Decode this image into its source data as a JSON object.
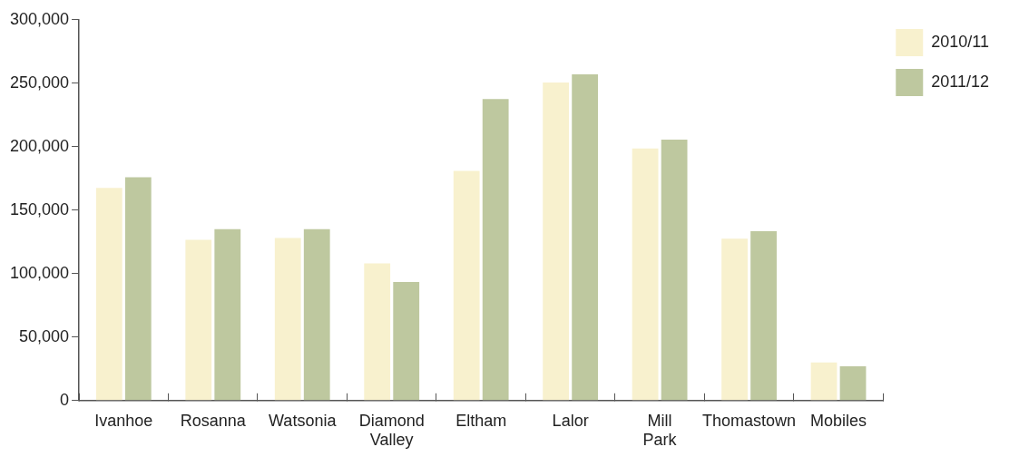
{
  "chart_data": {
    "type": "bar",
    "categories": [
      "Ivanhoe",
      "Rosanna",
      "Watsonia",
      "Diamond Valley",
      "Eltham",
      "Lalor",
      "Mill Park",
      "Thomastown",
      "Mobiles"
    ],
    "series": [
      {
        "name": "2010/11",
        "color": "#f8f1ce",
        "values": [
          167500,
          126700,
          128000,
          108000,
          181000,
          250500,
          198600,
          127500,
          30000
        ]
      },
      {
        "name": "2011/12",
        "color": "#bec89f",
        "values": [
          176000,
          135000,
          135000,
          93400,
          237600,
          257000,
          205500,
          133500,
          27000
        ]
      }
    ],
    "ylim": [
      0,
      300000
    ],
    "yticks": [
      {
        "value": 0,
        "label": "0"
      },
      {
        "value": 50000,
        "label": "50,000"
      },
      {
        "value": 100000,
        "label": "100,000"
      },
      {
        "value": 150000,
        "label": "150,000"
      },
      {
        "value": 200000,
        "label": "200,000"
      },
      {
        "value": 250000,
        "label": "250,000"
      },
      {
        "value": 300000,
        "label": "300,000"
      }
    ],
    "grid": false,
    "legend": "top right"
  }
}
